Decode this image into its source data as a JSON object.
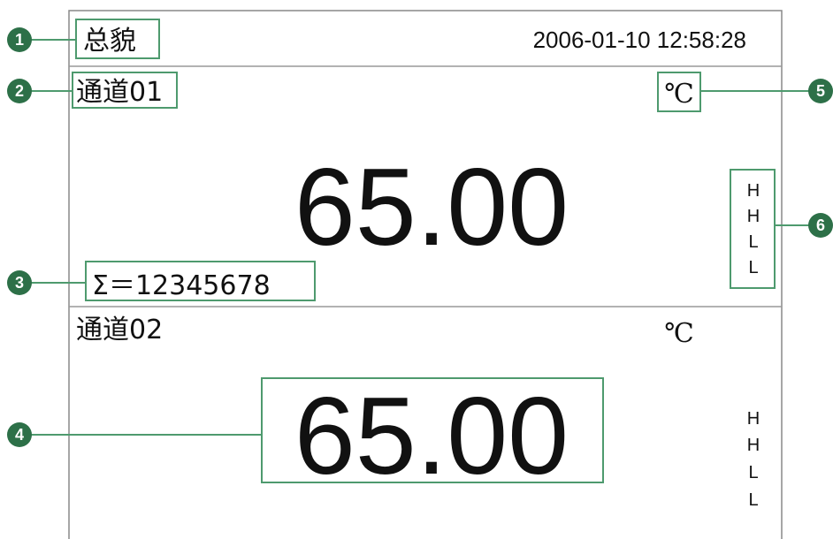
{
  "header": {
    "title": "总貌",
    "datetime": "2006-01-10 12:58:28"
  },
  "channels": [
    {
      "name": "通道01",
      "unit": "℃",
      "value": "65.00",
      "total": "Σ＝12345678",
      "alarms": [
        "H",
        "H",
        "L",
        "L"
      ]
    },
    {
      "name": "通道02",
      "unit": "℃",
      "value": "65.00",
      "alarms": [
        "H",
        "H",
        "L",
        "L"
      ]
    }
  ],
  "callouts": [
    "1",
    "2",
    "3",
    "4",
    "5",
    "6"
  ]
}
